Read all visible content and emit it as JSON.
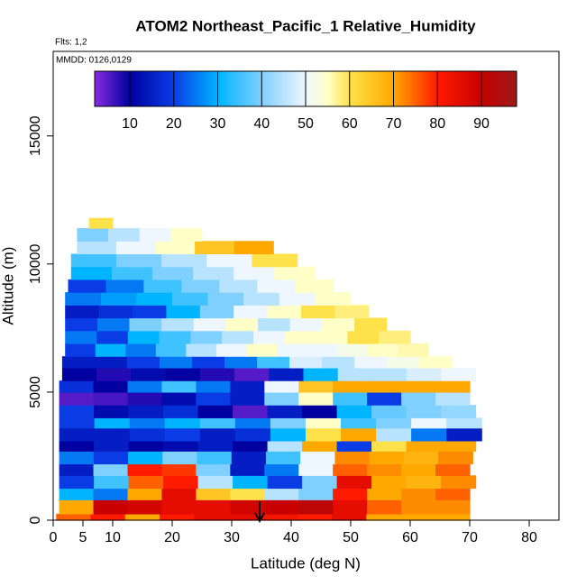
{
  "chart_data": {
    "type": "curtain",
    "title": "ATOM2 Northeast_Pacific_1 Relative_Humidity",
    "subtitle": "Flts: 1,2",
    "annotation": "MMDD: 0126,0129",
    "x_label": "Latitude (deg N)",
    "y_label": "Altitude (m)",
    "xlim": [
      0,
      85
    ],
    "ylim": [
      0,
      18300
    ],
    "xticks": [
      0,
      5,
      10,
      20,
      30,
      40,
      50,
      60,
      70,
      80
    ],
    "yticks": [
      0,
      5000,
      10000,
      15000
    ],
    "clim": [
      2,
      98
    ],
    "cticks": [
      10,
      20,
      30,
      40,
      50,
      60,
      70,
      80,
      90
    ],
    "colorscale": [
      [
        2,
        "#8a2be2"
      ],
      [
        10,
        "#0000a0"
      ],
      [
        20,
        "#0a3ce6"
      ],
      [
        30,
        "#00b4ff"
      ],
      [
        40,
        "#7fd0ff"
      ],
      [
        50,
        "#eef6ff"
      ],
      [
        55,
        "#ffffc8"
      ],
      [
        60,
        "#ffe24a"
      ],
      [
        70,
        "#ffa800"
      ],
      [
        80,
        "#ff1a00"
      ],
      [
        90,
        "#c80000"
      ],
      [
        98,
        "#9c1a1a"
      ]
    ],
    "rows": [
      {
        "alt": [
          0,
          250
        ],
        "lat": [
          0.5,
          70
        ],
        "values": [
          75,
          80,
          70,
          80,
          85,
          85,
          82,
          80,
          85,
          70,
          70,
          70
        ]
      },
      {
        "alt": [
          250,
          800
        ],
        "lat": [
          1,
          70
        ],
        "values": [
          70,
          90,
          88,
          85,
          85,
          88,
          90,
          92,
          85,
          75,
          72,
          72
        ]
      },
      {
        "alt": [
          800,
          1250
        ],
        "lat": [
          1,
          70
        ],
        "values": [
          30,
          25,
          70,
          85,
          65,
          60,
          45,
          40,
          80,
          70,
          72,
          75
        ]
      },
      {
        "alt": [
          1250,
          1750
        ],
        "lat": [
          1,
          71
        ],
        "values": [
          20,
          35,
          75,
          80,
          45,
          30,
          20,
          40,
          85,
          70,
          68,
          72
        ]
      },
      {
        "alt": [
          1750,
          2200
        ],
        "lat": [
          1,
          70
        ],
        "values": [
          15,
          40,
          80,
          78,
          40,
          15,
          25,
          50,
          75,
          72,
          70,
          75
        ]
      },
      {
        "alt": [
          2200,
          2700
        ],
        "lat": [
          1,
          70.5
        ],
        "values": [
          25,
          20,
          30,
          40,
          35,
          15,
          35,
          50,
          72,
          70,
          68,
          72
        ]
      },
      {
        "alt": [
          2700,
          3100
        ],
        "lat": [
          1,
          71
        ],
        "values": [
          10,
          15,
          10,
          12,
          15,
          10,
          45,
          70,
          20,
          60,
          70,
          70
        ]
      },
      {
        "alt": [
          3100,
          3600
        ],
        "lat": [
          1,
          72
        ],
        "values": [
          15,
          15,
          18,
          20,
          15,
          18,
          30,
          60,
          70,
          45,
          25,
          15
        ]
      },
      {
        "alt": [
          3600,
          4000
        ],
        "lat": [
          1,
          72
        ],
        "values": [
          20,
          30,
          25,
          30,
          35,
          25,
          40,
          55,
          35,
          40,
          50,
          45
        ]
      },
      {
        "alt": [
          4000,
          4500
        ],
        "lat": [
          1,
          71
        ],
        "values": [
          20,
          12,
          15,
          18,
          10,
          5,
          15,
          10,
          30,
          38,
          40,
          42
        ]
      },
      {
        "alt": [
          4500,
          5000
        ],
        "lat": [
          1,
          70
        ],
        "values": [
          5,
          6,
          8,
          12,
          20,
          15,
          40,
          55,
          35,
          20,
          40,
          45
        ]
      },
      {
        "alt": [
          5000,
          5450
        ],
        "lat": [
          1,
          70
        ],
        "values": [
          18,
          10,
          25,
          35,
          25,
          15,
          50,
          65,
          70,
          70,
          70,
          70
        ]
      },
      {
        "alt": [
          5450,
          5950
        ],
        "lat": [
          1.5,
          71
        ],
        "values": [
          10,
          8,
          12,
          10,
          8,
          5,
          15,
          30,
          45,
          45,
          48,
          50
        ]
      },
      {
        "alt": [
          5950,
          6400
        ],
        "lat": [
          1.5,
          67
        ],
        "values": [
          15,
          15,
          20,
          25,
          20,
          25,
          35,
          48,
          45,
          50,
          52,
          55
        ]
      },
      {
        "alt": [
          6400,
          6900
        ],
        "lat": [
          2,
          63
        ],
        "values": [
          20,
          30,
          25,
          35,
          45,
          50,
          55,
          50,
          50,
          52,
          55,
          56
        ]
      },
      {
        "alt": [
          6900,
          7400
        ],
        "lat": [
          2,
          60
        ],
        "values": [
          25,
          20,
          30,
          35,
          40,
          45,
          50,
          55,
          55,
          60,
          58
        ]
      },
      {
        "alt": [
          7400,
          7900
        ],
        "lat": [
          2,
          56
        ],
        "values": [
          20,
          25,
          40,
          45,
          50,
          55,
          45,
          50,
          55,
          60
        ]
      },
      {
        "alt": [
          7900,
          8400
        ],
        "lat": [
          2,
          53
        ],
        "values": [
          15,
          18,
          20,
          30,
          40,
          50,
          55,
          60,
          58
        ]
      },
      {
        "alt": [
          8400,
          8900
        ],
        "lat": [
          2,
          50
        ],
        "values": [
          25,
          28,
          30,
          35,
          40,
          45,
          50,
          55
        ]
      },
      {
        "alt": [
          8900,
          9400
        ],
        "lat": [
          2.5,
          47
        ],
        "values": [
          20,
          25,
          35,
          40,
          45,
          50,
          55
        ]
      },
      {
        "alt": [
          9400,
          9900
        ],
        "lat": [
          3,
          44
        ],
        "values": [
          30,
          35,
          40,
          45,
          50,
          55
        ]
      },
      {
        "alt": [
          9900,
          10400
        ],
        "lat": [
          3,
          41
        ],
        "values": [
          35,
          40,
          45,
          50,
          60
        ]
      },
      {
        "alt": [
          10400,
          10900
        ],
        "lat": [
          4,
          37
        ],
        "values": [
          45,
          50,
          55,
          65,
          70
        ]
      },
      {
        "alt": [
          10900,
          11400
        ],
        "lat": [
          4,
          25
        ],
        "values": [
          40,
          45,
          50,
          55
        ]
      },
      {
        "alt": [
          11400,
          11800
        ],
        "lat": [
          6,
          10
        ],
        "values": [
          60
        ]
      }
    ]
  }
}
